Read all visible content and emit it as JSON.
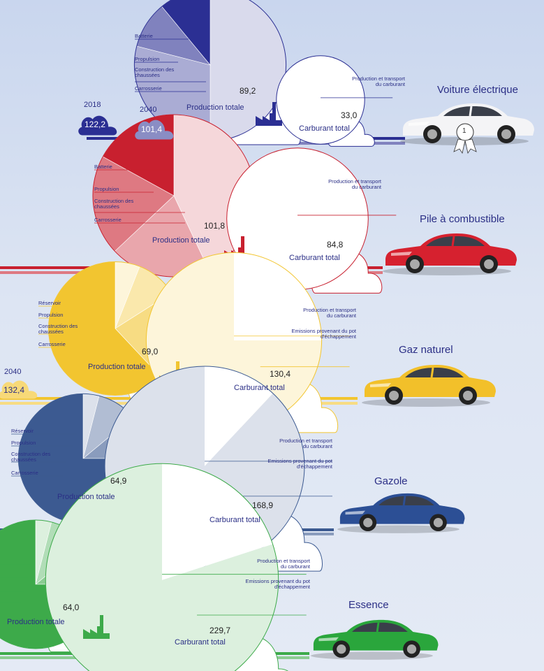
{
  "chart_data": [
    {
      "type": "pie",
      "vehicle": "Voiture électrique",
      "badge": "1",
      "production": {
        "label": "Production totale",
        "value": 89.2,
        "value_text": "89,2",
        "segments": [
          "Batterie",
          "Propulsion",
          "Construction des chaussées",
          "Carrosserie"
        ],
        "fractions": [
          0.5,
          0.29,
          0.1,
          0.11
        ]
      },
      "fuel": {
        "label": "Carburant total",
        "value": 33.0,
        "value_text": "33,0",
        "segments": [
          "Production et transport du carburant"
        ],
        "fractions": [
          1.0
        ]
      },
      "previous": [
        {
          "year": "2018",
          "value": 122.2,
          "value_text": "122,2"
        },
        {
          "year": "2040",
          "value": 101.4,
          "value_text": "101,4"
        }
      ]
    },
    {
      "type": "pie",
      "vehicle": "Pile à combustible",
      "production": {
        "label": "Production totale",
        "value": 101.8,
        "value_text": "101,8",
        "segments": [
          "Batterie",
          "Propulsion",
          "Construction des chaussées",
          "Carrosserie"
        ],
        "fractions": [
          0.43,
          0.2,
          0.2,
          0.17
        ]
      },
      "fuel": {
        "label": "Carburant total",
        "value": 84.8,
        "value_text": "84,8",
        "segments": [
          "Production et transport du carburant"
        ],
        "fractions": [
          1.0
        ]
      }
    },
    {
      "type": "pie",
      "vehicle": "Gaz naturel",
      "production": {
        "label": "Production totale",
        "value": 69.0,
        "value_text": "69,0",
        "segments": [
          "Réservoir",
          "Propulsion",
          "Construction des chaussées",
          "Carrosserie"
        ],
        "fractions": [
          0.06,
          0.1,
          0.22,
          0.62
        ]
      },
      "fuel": {
        "label": "Carburant total",
        "value": 130.4,
        "value_text": "130,4",
        "segments": [
          "Production et transport du carburant",
          "Emissions provenant du pot d'échappement"
        ],
        "fractions": [
          0.25,
          0.75
        ]
      },
      "previous": [
        {
          "year": "2040",
          "value": 132.4,
          "value_text": "132,4"
        }
      ]
    },
    {
      "type": "pie",
      "vehicle": "Gazole",
      "production": {
        "label": "Production totale",
        "value": 64.9,
        "value_text": "64,9",
        "segments": [
          "Réservoir",
          "Propulsion",
          "Construction des chaussées",
          "Carrosserie"
        ],
        "fractions": [
          0.04,
          0.1,
          0.11,
          0.75
        ]
      },
      "fuel": {
        "label": "Carburant total",
        "value": 168.9,
        "value_text": "168,9",
        "segments": [
          "Production et transport du carburant",
          "Emissions provenant du pot d'échappement"
        ],
        "fractions": [
          0.12,
          0.88
        ]
      }
    },
    {
      "type": "pie",
      "vehicle": "Essence",
      "production": {
        "label": "Production totale",
        "value": 64.0,
        "value_text": "64,0",
        "segments": [
          "Réservoir",
          "Propulsion",
          "Construction des chaussées",
          "Carrosserie"
        ],
        "fractions": [
          0.04,
          0.1,
          0.11,
          0.75
        ]
      },
      "fuel": {
        "label": "Carburant total",
        "value": 229.7,
        "value_text": "229,7",
        "segments": [
          "Production et transport du carburant",
          "Emissions provenant du pot d'échappement"
        ],
        "fractions": [
          0.2,
          0.8
        ]
      }
    }
  ],
  "colors": {
    "blue": "#2b2f93",
    "red": "#c8202f",
    "yellow": "#f2c530",
    "steel": "#3c5a91",
    "green": "#3daa4a",
    "text": "#2b2f86"
  }
}
